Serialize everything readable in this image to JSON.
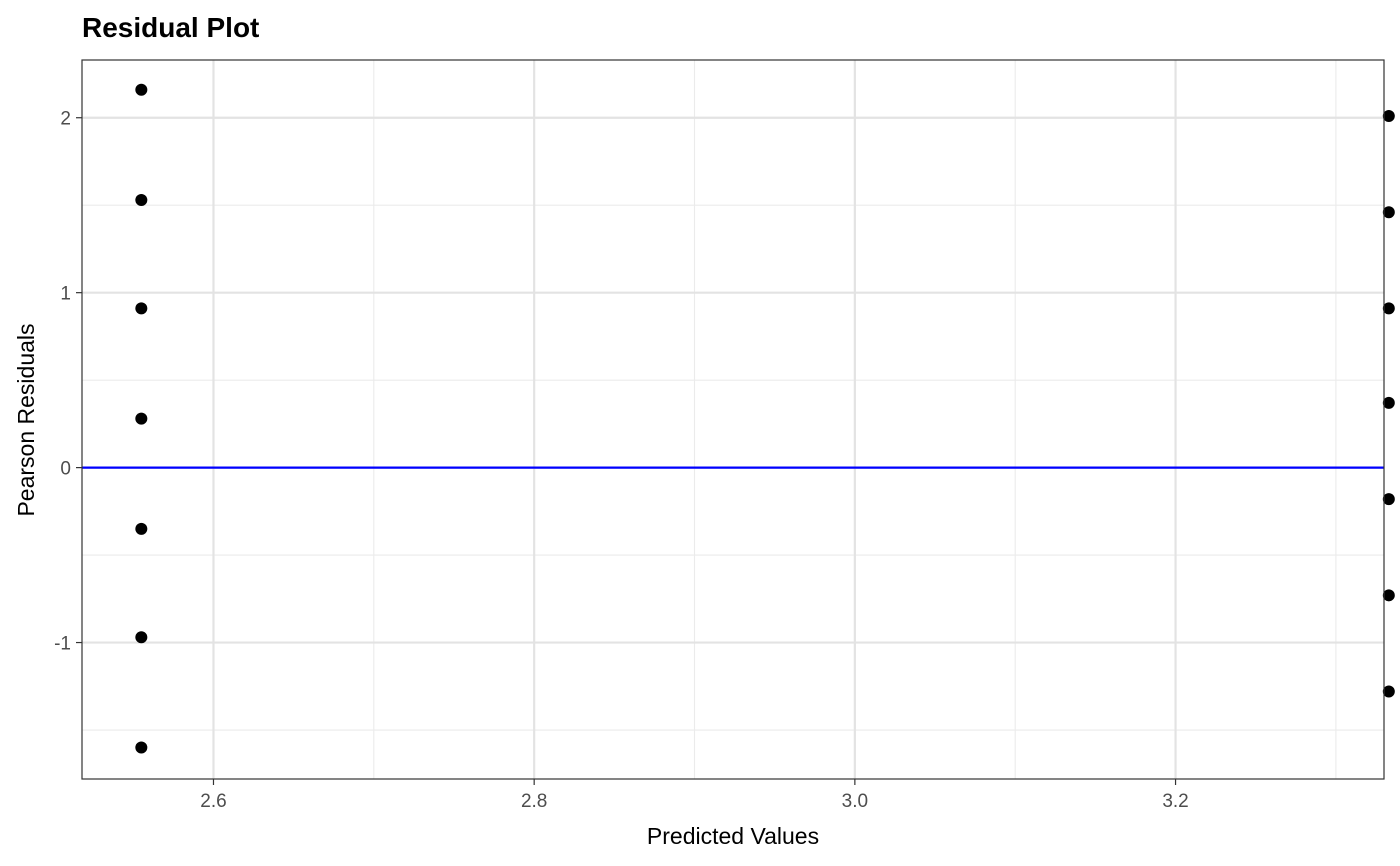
{
  "chart_data": {
    "type": "scatter",
    "title": "Residual Plot",
    "xlabel": "Predicted Values",
    "ylabel": "Pearson Residuals",
    "xlim": [
      2.518,
      3.33
    ],
    "ylim": [
      -1.78,
      2.33
    ],
    "x_ticks": [
      2.6,
      2.8,
      3.0,
      3.2
    ],
    "x_tick_labels": [
      "2.6",
      "2.8",
      "3.0",
      "3.2"
    ],
    "y_ticks": [
      -1,
      0,
      1,
      2
    ],
    "y_tick_labels": [
      "-1",
      "0",
      "1",
      "2"
    ],
    "grid": true,
    "reference_line": {
      "y": 0,
      "color": "#0000ff"
    },
    "point_color": "#000000",
    "points": [
      {
        "x": 2.555,
        "y": 2.16
      },
      {
        "x": 2.555,
        "y": 1.53
      },
      {
        "x": 2.555,
        "y": 0.91
      },
      {
        "x": 2.555,
        "y": 0.28
      },
      {
        "x": 2.555,
        "y": -0.35
      },
      {
        "x": 2.555,
        "y": -0.97
      },
      {
        "x": 2.555,
        "y": -1.6
      },
      {
        "x": 3.333,
        "y": 2.01
      },
      {
        "x": 3.333,
        "y": 1.46
      },
      {
        "x": 3.333,
        "y": 0.91
      },
      {
        "x": 3.333,
        "y": 0.37
      },
      {
        "x": 3.333,
        "y": -0.18
      },
      {
        "x": 3.333,
        "y": -0.73
      },
      {
        "x": 3.333,
        "y": -1.28
      }
    ]
  }
}
